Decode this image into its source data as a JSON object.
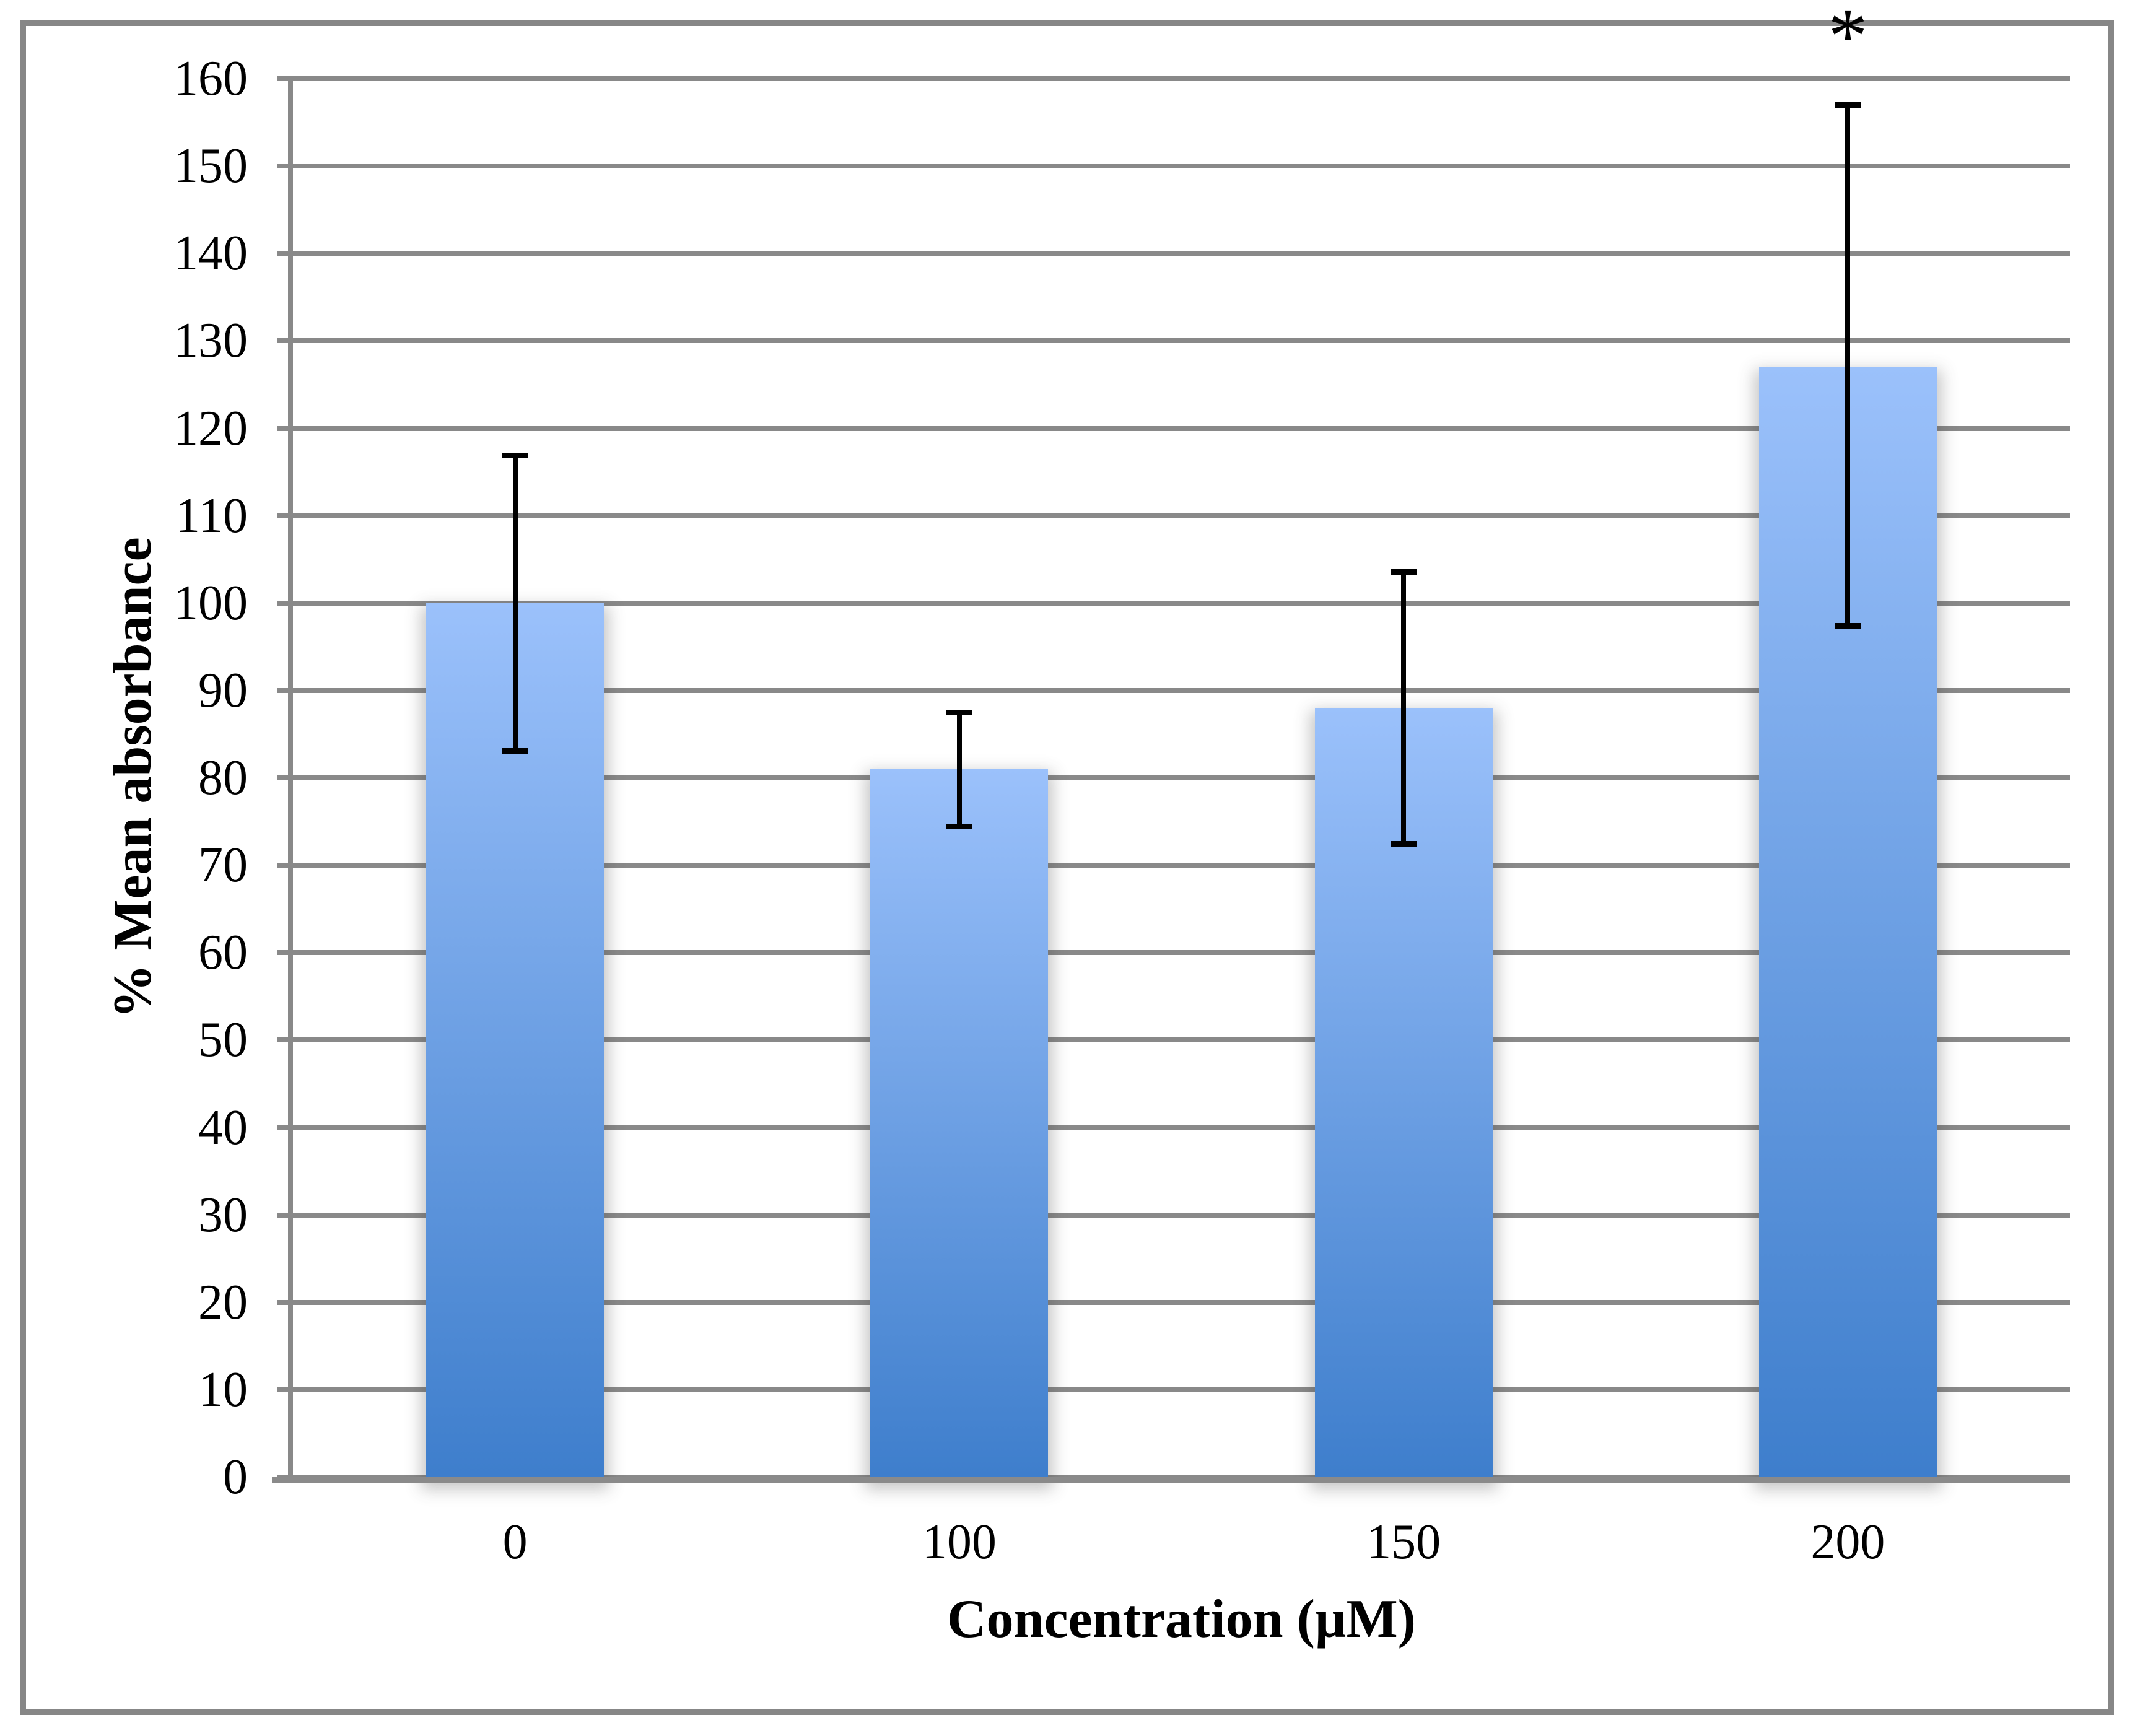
{
  "figure": {
    "background_color": "#ffffff",
    "frame_border_color": "#878787"
  },
  "chart_data": {
    "type": "bar",
    "title": "",
    "xlabel": "Concentration (µM)",
    "ylabel": "% Mean absorbance",
    "categories": [
      "0",
      "100",
      "150",
      "200"
    ],
    "values": [
      100,
      81,
      88,
      127
    ],
    "error_plus": [
      16.9,
      6.5,
      15.6,
      30.0
    ],
    "error_minus": [
      16.9,
      6.5,
      15.5,
      29.6
    ],
    "ylim": [
      0,
      160
    ],
    "ytick_step": 10,
    "ytick_labels": [
      "0",
      "10",
      "20",
      "30",
      "40",
      "50",
      "60",
      "70",
      "80",
      "90",
      "100",
      "110",
      "120",
      "130",
      "140",
      "150",
      "160"
    ],
    "grid": "horizontal-gridlines-on",
    "legend": "none",
    "gridline_color": "#898989",
    "axis_line_color": "#898989",
    "error_bar_color": "#000000",
    "bar_gradient_top": "#9bc1fb",
    "bar_gradient_bottom": "#3e7ecc",
    "annotations": [
      {
        "text": "*",
        "bar_index": 3,
        "meaning": "significance-marker"
      }
    ]
  }
}
